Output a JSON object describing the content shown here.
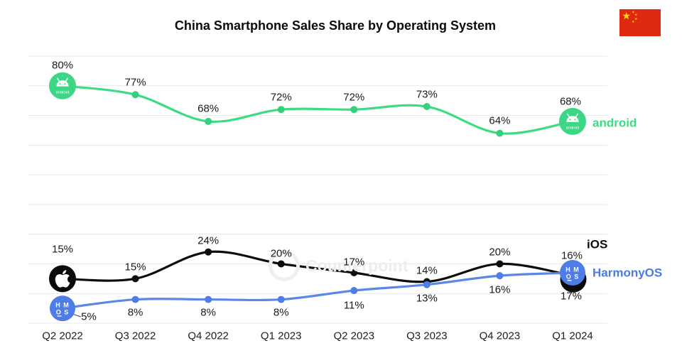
{
  "title": "China Smartphone Sales Share by Operating System",
  "watermark": "Counterpoint",
  "flag": {
    "name": "china-flag",
    "red": "#DE2910",
    "yellow": "#FFDE00"
  },
  "legend": {
    "android": "android",
    "ios": "iOS",
    "harmonyos": "HarmonyOS"
  },
  "badges": {
    "hmos_line1": "H M",
    "hmos_line2": "O S",
    "android_wordmark": "android"
  },
  "chart_data": {
    "type": "line",
    "title": "China Smartphone Sales Share by Operating System",
    "categories": [
      "Q2 2022",
      "Q3 2022",
      "Q4 2022",
      "Q1 2023",
      "Q2 2023",
      "Q3 2023",
      "Q4 2023",
      "Q1 2024"
    ],
    "series": [
      {
        "name": "android",
        "color": "#3DDC84",
        "marker_color": "#35D07F",
        "values": [
          80,
          77,
          68,
          72,
          72,
          73,
          64,
          68
        ]
      },
      {
        "name": "iOS",
        "color": "#0D0D0D",
        "marker_color": "#0D0D0D",
        "values": [
          15,
          15,
          24,
          20,
          17,
          14,
          20,
          16
        ]
      },
      {
        "name": "HarmonyOS",
        "color": "#5C87E8",
        "marker_color": "#4E7DE6",
        "values": [
          5,
          8,
          8,
          8,
          11,
          13,
          16,
          17
        ]
      }
    ],
    "unit": "%",
    "ylim": [
      0,
      90
    ],
    "grid": true,
    "gridline_step": 10,
    "legend_position": "right-of-last-point",
    "data_labels": true
  },
  "colors": {
    "grid": "#E8E8E8",
    "label_text": "#1A1A1A",
    "android_badge": "#3DD687",
    "apple_badge": "#0B0B0B",
    "hmos_badge": "#4E7DE6",
    "background": "#FFFFFF"
  }
}
